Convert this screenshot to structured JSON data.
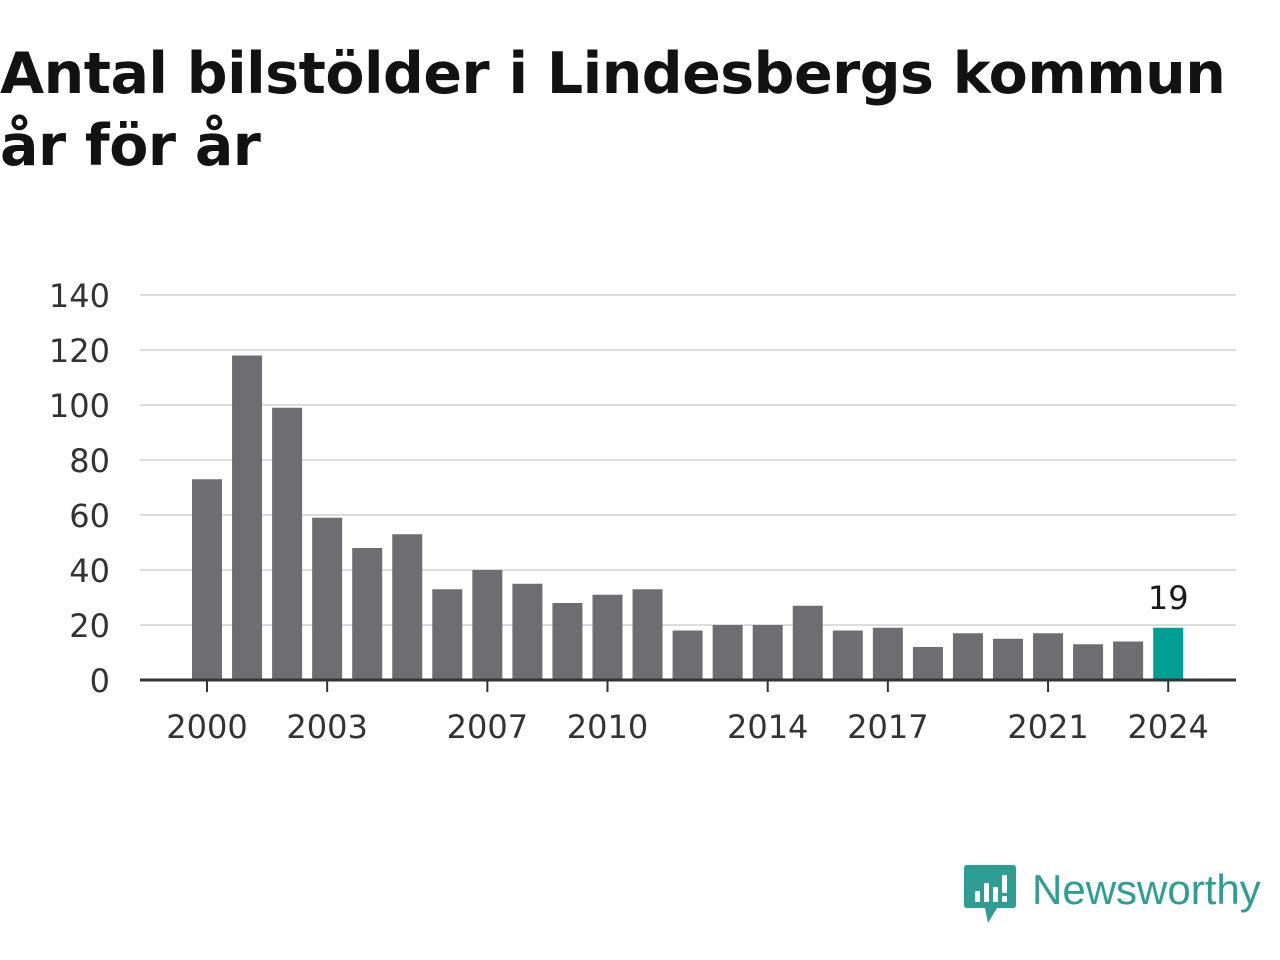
{
  "title_lines": [
    "Antal bilstölder i Lindesbergs kommun",
    "år för år"
  ],
  "brand": "Newsworthy",
  "colors": {
    "bar": "#6e6d72",
    "highlight": "#009f94",
    "grid": "#dddddd",
    "axis": "#333333",
    "text": "#333333",
    "brand": "#2e9e94"
  },
  "chart_data": {
    "type": "bar",
    "categories": [
      "2000",
      "2001",
      "2002",
      "2003",
      "2004",
      "2005",
      "2006",
      "2007",
      "2008",
      "2009",
      "2010",
      "2011",
      "2012",
      "2013",
      "2014",
      "2015",
      "2016",
      "2017",
      "2018",
      "2019",
      "2020",
      "2021",
      "2022",
      "2023",
      "2024"
    ],
    "values": [
      73,
      118,
      99,
      59,
      48,
      53,
      33,
      40,
      35,
      28,
      31,
      33,
      18,
      20,
      20,
      27,
      18,
      19,
      12,
      17,
      15,
      17,
      13,
      14,
      19
    ],
    "x_tick_labels": [
      "2000",
      "2003",
      "2007",
      "2010",
      "2014",
      "2017",
      "2021",
      "2024"
    ],
    "y_ticks": [
      0,
      20,
      40,
      60,
      80,
      100,
      120,
      140
    ],
    "ylim": [
      0,
      140
    ],
    "highlight_category": "2024",
    "highlight_label": "19",
    "grid": true,
    "legend": false
  }
}
